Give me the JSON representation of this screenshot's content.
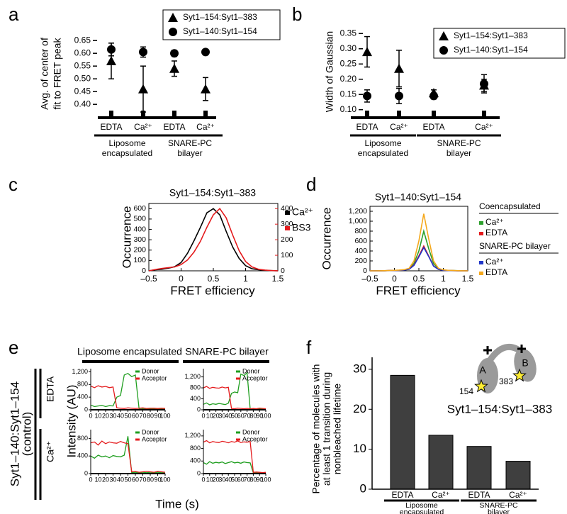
{
  "chart_data": [
    {
      "type": "scatter",
      "panel": "a",
      "ylabel_lines": [
        "Avg. of center of",
        "fit to FRET peak"
      ],
      "categories": [
        "EDTA",
        "Ca²⁺",
        "EDTA",
        "Ca²⁺"
      ],
      "groups": [
        [
          "Liposome",
          "encapsulated"
        ],
        [
          "SNARE-PC",
          "bilayer"
        ]
      ],
      "ylim": [
        0.37,
        0.67
      ],
      "yticks": [
        {
          "value": 0.4,
          "label": "0.40"
        },
        0.45,
        {
          "value": 0.5,
          "label": "0.50"
        },
        0.55,
        {
          "value": 0.6,
          "label": "0.60"
        },
        0.65
      ],
      "series": [
        {
          "name": "Syt1–154:Syt1–383",
          "marker": "triangle",
          "color": "#000000",
          "values": [
            0.57,
            0.46,
            0.54,
            0.46
          ],
          "errors": [
            0.07,
            0.09,
            0.03,
            0.045
          ]
        },
        {
          "name": "Syt1–140:Syt1–154",
          "marker": "circle",
          "color": "#000000",
          "values": [
            0.615,
            0.605,
            0.6,
            0.605
          ],
          "errors": [
            0.025,
            0.02,
            0.012,
            0.005
          ]
        }
      ]
    },
    {
      "type": "scatter",
      "panel": "b",
      "ylabel_lines": [
        "Width of Gaussian"
      ],
      "categories": [
        "EDTA",
        "Ca²⁺",
        "EDTA",
        "Ca²⁺"
      ],
      "groups": [
        [
          "Liposome",
          "encapsulated"
        ],
        [
          "SNARE-PC",
          "bilayer"
        ]
      ],
      "ylim": [
        0.09,
        0.36
      ],
      "yticks": [
        {
          "value": 0.1,
          "label": "0.10"
        },
        0.15,
        {
          "value": 0.2,
          "label": "0.20"
        },
        0.25,
        {
          "value": 0.3,
          "label": "0.30"
        },
        0.35
      ],
      "series": [
        {
          "name": "Syt1–154:Syt1–383",
          "marker": "triangle",
          "color": "#000000",
          "values": [
            0.29,
            0.235,
            0.155,
            0.18
          ],
          "errors": [
            0.05,
            0.06,
            0.01,
            0.02
          ]
        },
        {
          "name": "Syt1–140:Syt1–154",
          "marker": "circle",
          "color": "#000000",
          "values": [
            0.145,
            0.145,
            0.145,
            0.185
          ],
          "errors": [
            0.02,
            0.025,
            0.01,
            0.03
          ]
        }
      ]
    },
    {
      "type": "line",
      "panel": "c",
      "title": "Syt1–154:Syt1–383",
      "xlabel": "FRET efficiency",
      "ylabel": "Occurrence",
      "x": [
        -0.5,
        -0.4,
        -0.3,
        -0.2,
        -0.1,
        0,
        0.1,
        0.2,
        0.3,
        0.4,
        0.5,
        0.6,
        0.7,
        0.8,
        0.9,
        1,
        1.1,
        1.2,
        1.3,
        1.4,
        1.5
      ],
      "xlim": [
        -0.5,
        1.5
      ],
      "xticks": [
        {
          "value": -0.5,
          "label": "–0.5"
        },
        0,
        0.5,
        1,
        1.5
      ],
      "ylim": [
        0,
        650
      ],
      "yticks": [
        0,
        100,
        200,
        300,
        400,
        500,
        600
      ],
      "y2lim": [
        0,
        433
      ],
      "y2ticks": [
        0,
        100,
        200,
        300,
        400
      ],
      "series": [
        {
          "name": "Ca²⁺",
          "color": "#000000",
          "values": [
            0,
            10,
            15,
            25,
            40,
            80,
            170,
            290,
            420,
            560,
            600,
            540,
            380,
            230,
            120,
            50,
            20,
            10,
            5,
            2,
            0
          ]
        },
        {
          "name": "BS3",
          "color": "#e41a1c",
          "axis": "y2",
          "values": [
            0,
            8,
            15,
            20,
            25,
            40,
            70,
            120,
            190,
            280,
            360,
            400,
            340,
            230,
            130,
            60,
            25,
            10,
            5,
            2,
            0
          ]
        }
      ]
    },
    {
      "type": "line",
      "panel": "d",
      "title": "Syt1–140:Syt1–154",
      "xlabel": "FRET efficiency",
      "ylabel": "Occurrence",
      "x": [
        -0.5,
        -0.4,
        -0.3,
        -0.2,
        -0.1,
        0,
        0.1,
        0.2,
        0.3,
        0.4,
        0.5,
        0.6,
        0.7,
        0.8,
        0.9,
        1,
        1.1,
        1.2,
        1.3,
        1.4,
        1.5
      ],
      "xlim": [
        -0.5,
        1.5
      ],
      "xticks": [
        {
          "value": -0.5,
          "label": "–0.5"
        },
        0,
        0.5,
        1,
        1.5
      ],
      "ylim": [
        0,
        1300
      ],
      "yticks": [
        0,
        200,
        400,
        600,
        800,
        {
          "value": 1000,
          "label": "1,000"
        },
        {
          "value": 1200,
          "label": "1,200"
        }
      ],
      "legend_titles": [
        "Coencapsulated",
        "SNARE-PC bilayer"
      ],
      "series": [
        {
          "name": "Ca²⁺",
          "color": "#2ca02c",
          "values": [
            0,
            0,
            2,
            3,
            5,
            8,
            12,
            20,
            40,
            150,
            400,
            800,
            450,
            150,
            40,
            15,
            8,
            5,
            3,
            2,
            0
          ]
        },
        {
          "name": "EDTA",
          "color": "#e41a1c",
          "values": [
            0,
            0,
            2,
            3,
            5,
            8,
            10,
            18,
            35,
            120,
            300,
            500,
            300,
            100,
            30,
            12,
            6,
            4,
            2,
            1,
            0
          ]
        },
        {
          "name": "Ca²⁺",
          "color": "#2036c8",
          "values": [
            0,
            0,
            1,
            2,
            4,
            6,
            10,
            15,
            30,
            110,
            280,
            470,
            290,
            95,
            28,
            10,
            5,
            3,
            2,
            1,
            0
          ]
        },
        {
          "name": "EDTA",
          "color": "#f5a81c",
          "values": [
            0,
            0,
            2,
            3,
            5,
            10,
            15,
            25,
            50,
            200,
            600,
            1150,
            650,
            200,
            50,
            20,
            10,
            5,
            3,
            2,
            0
          ]
        }
      ]
    },
    {
      "type": "trace",
      "panel": "e",
      "columns": [
        "Liposome encapsulated",
        "SNARE-PC bilayer"
      ],
      "rows": [
        "EDTA",
        "Ca²⁺"
      ],
      "row_title": "Syt1–140:Syt1–154",
      "row_subtitle": "(control)",
      "xlabel": "Time (s)",
      "ylabel": "Intensity (AU)",
      "xlim": [
        0,
        100
      ],
      "xticks": [
        0,
        10,
        20,
        30,
        40,
        50,
        60,
        70,
        80,
        90,
        100
      ],
      "x": [
        0,
        5,
        10,
        15,
        20,
        25,
        30,
        35,
        40,
        45,
        50,
        55,
        60,
        65,
        70,
        75,
        80,
        85,
        90,
        95,
        100
      ],
      "plots": [
        {
          "ylim": [
            0,
            1300
          ],
          "yticks": [
            0,
            400,
            800,
            {
              "value": 1200,
              "label": "1,200"
            }
          ],
          "series": [
            {
              "name": "Donor",
              "color": "#1f9e1f",
              "values": [
                150,
                100,
                120,
                140,
                100,
                130,
                120,
                400,
                450,
                1100,
                1150,
                1050,
                1100,
                20,
                30,
                20,
                20,
                30,
                20,
                20,
                30
              ]
            },
            {
              "name": "Acceptor",
              "color": "#e41a1c",
              "values": [
                750,
                700,
                760,
                720,
                740,
                700,
                720,
                60,
                50,
                40,
                60,
                50,
                40,
                50,
                60,
                40,
                50,
                50,
                40,
                50,
                40
              ]
            }
          ]
        },
        {
          "ylim": [
            0,
            1500
          ],
          "yticks": [
            0,
            400,
            800,
            {
              "value": 1200,
              "label": "1,200"
            }
          ],
          "series": [
            {
              "name": "Donor",
              "color": "#1f9e1f",
              "values": [
                200,
                250,
                180,
                220,
                200,
                230,
                210,
                190,
                240,
                600,
                650,
                620,
                1300,
                1250,
                1350,
                30,
                20,
                30,
                20,
                30,
                20
              ]
            },
            {
              "name": "Acceptor",
              "color": "#e41a1c",
              "values": [
                800,
                850,
                780,
                820,
                800,
                790,
                830,
                800,
                820,
                50,
                40,
                60,
                50,
                40,
                50,
                40,
                50,
                40,
                60,
                50,
                40
              ]
            }
          ]
        },
        {
          "ylim": [
            0,
            1000
          ],
          "yticks": [
            0,
            400,
            800
          ],
          "series": [
            {
              "name": "Donor",
              "color": "#1f9e1f",
              "values": [
                400,
                350,
                420,
                380,
                400,
                360,
                410,
                390,
                380,
                420,
                850,
                20,
                30,
                20,
                30,
                20,
                30,
                20,
                30,
                20,
                30
              ]
            },
            {
              "name": "Acceptor",
              "color": "#e41a1c",
              "values": [
                700,
                720,
                650,
                740,
                680,
                720,
                700,
                690,
                730,
                700,
                680,
                40,
                50,
                30,
                40,
                50,
                40,
                30,
                50,
                40,
                30
              ]
            }
          ]
        },
        {
          "ylim": [
            0,
            1400
          ],
          "yticks": [
            0,
            400,
            800,
            {
              "value": 1200,
              "label": "1,200"
            }
          ],
          "series": [
            {
              "name": "Donor",
              "color": "#1f9e1f",
              "values": [
                350,
                300,
                380,
                330,
                360,
                340,
                370,
                320,
                350,
                380,
                340,
                360,
                330,
                370,
                350,
                340,
                20,
                30,
                20,
                30,
                20
              ]
            },
            {
              "name": "Acceptor",
              "color": "#e41a1c",
              "values": [
                1000,
                1050,
                980,
                1020,
                1000,
                990,
                1030,
                1010,
                980,
                1020,
                1000,
                1040,
                990,
                1010,
                1000,
                1020,
                40,
                50,
                40,
                30,
                40
              ]
            }
          ]
        }
      ]
    },
    {
      "type": "bar",
      "panel": "f",
      "ylabel_lines": [
        "Percentage of molecules with",
        "at least 1 transition during",
        "nonbleached lifetime"
      ],
      "categories": [
        "EDTA",
        "Ca²⁺",
        "EDTA",
        "Ca²⁺"
      ],
      "groups": [
        [
          "Liposome",
          "encapsulated"
        ],
        [
          "SNARE-PC",
          "bilayer"
        ]
      ],
      "values": [
        28.5,
        13.5,
        10.7,
        7
      ],
      "color": "#3f3f3f",
      "ylim": [
        0,
        33
      ],
      "yticks": [
        0,
        10,
        20,
        30
      ],
      "inset": {
        "title": "Syt1–154:Syt1–383",
        "labels": [
          "A",
          "B",
          "154",
          "383"
        ]
      }
    }
  ]
}
